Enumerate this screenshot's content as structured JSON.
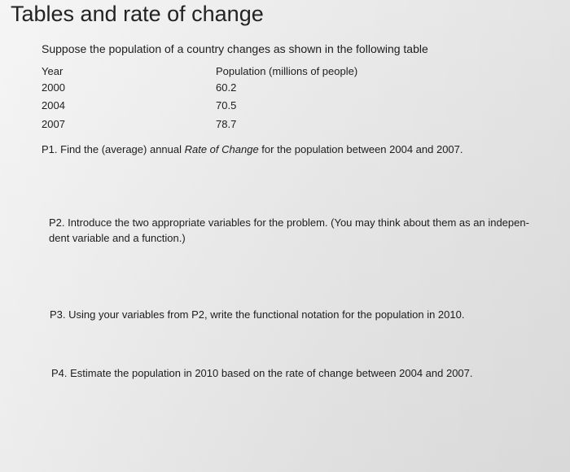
{
  "title": "Tables and rate of change",
  "intro": "Suppose the population of a country changes as shown in the following table",
  "table": {
    "headers": {
      "year": "Year",
      "population": "Population (millions of people)"
    },
    "rows": [
      {
        "year": "2000",
        "population": "60.2"
      },
      {
        "year": "2004",
        "population": "70.5"
      },
      {
        "year": "2007",
        "population": "78.7"
      }
    ]
  },
  "questions": {
    "p1": {
      "before": "P1. Find the (average) annual ",
      "emphasis": "Rate of Change",
      "after": " for the population between 2004 and 2007."
    },
    "p2": {
      "line1": "P2. Introduce the two appropriate variables for the problem. (You may think about them as an indepen-",
      "line2": "dent variable and a function.)"
    },
    "p3": "P3. Using your variables from P2, write the functional notation for the population in 2010.",
    "p4": "P4. Estimate the population in 2010 based on the rate of change between 2004 and 2007."
  }
}
